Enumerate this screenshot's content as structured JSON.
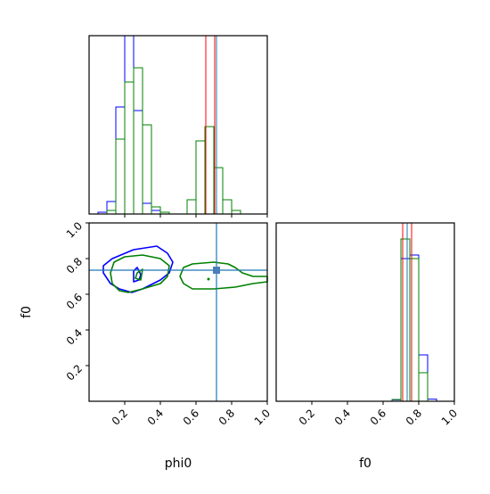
{
  "chart_data": [
    {
      "type": "histogram",
      "panel": "phi0-marginal",
      "xlim": [
        0,
        1
      ],
      "bin_edges": [
        0.0,
        0.05,
        0.1,
        0.15,
        0.2,
        0.25,
        0.3,
        0.35,
        0.4,
        0.45,
        0.5,
        0.55,
        0.6,
        0.65,
        0.7,
        0.75,
        0.8,
        0.85,
        0.9,
        0.95,
        1.0
      ],
      "series": [
        {
          "color": "#0000ff",
          "values": [
            0.0,
            0.01,
            0.07,
            0.6,
            1.15,
            0.58,
            0.06,
            0.02,
            0.0,
            0.0,
            0.0,
            0.0,
            0.0,
            0.0,
            0.0,
            0.0,
            0.0,
            0.0,
            0.0,
            0.0
          ]
        },
        {
          "color": "#008000",
          "values": [
            0.0,
            0.0,
            0.02,
            0.42,
            0.74,
            0.82,
            0.5,
            0.04,
            0.01,
            0.0,
            0.0,
            0.08,
            0.41,
            0.49,
            0.26,
            0.08,
            0.02,
            0.0,
            0.0,
            0.0
          ]
        }
      ],
      "truth_lines": [
        {
          "x": 0.655,
          "color": "#ff0000"
        },
        {
          "x": 0.705,
          "color": "#ff0000"
        },
        {
          "x": 0.715,
          "color": "#1f77b4"
        }
      ]
    },
    {
      "type": "contour",
      "panel": "f0-vs-phi0",
      "xlabel": "phi0",
      "ylabel": "f0",
      "xlim": [
        0,
        1
      ],
      "ylim": [
        0,
        1
      ],
      "xticks": [
        "0.2",
        "0.4",
        "0.6",
        "0.8",
        "1.0"
      ],
      "yticks": [
        "0.2",
        "0.4",
        "0.6",
        "0.8",
        "1.0"
      ],
      "contours": [
        {
          "color": "#0000ff",
          "points": [
            [
              0.08,
              0.76
            ],
            [
              0.13,
              0.8
            ],
            [
              0.25,
              0.85
            ],
            [
              0.38,
              0.87
            ],
            [
              0.44,
              0.83
            ],
            [
              0.47,
              0.78
            ],
            [
              0.45,
              0.72
            ],
            [
              0.4,
              0.68
            ],
            [
              0.3,
              0.63
            ],
            [
              0.24,
              0.61
            ],
            [
              0.17,
              0.63
            ],
            [
              0.12,
              0.66
            ],
            [
              0.08,
              0.72
            ]
          ],
          "closed": true
        },
        {
          "color": "#0000ff",
          "points": [
            [
              0.25,
              0.73
            ],
            [
              0.27,
              0.75
            ],
            [
              0.29,
              0.71
            ],
            [
              0.28,
              0.68
            ],
            [
              0.25,
              0.67
            ]
          ],
          "closed": true
        },
        {
          "color": "#008000",
          "points": [
            [
              0.12,
              0.72
            ],
            [
              0.14,
              0.78
            ],
            [
              0.2,
              0.81
            ],
            [
              0.3,
              0.82
            ],
            [
              0.4,
              0.8
            ],
            [
              0.45,
              0.76
            ],
            [
              0.44,
              0.7
            ],
            [
              0.4,
              0.66
            ],
            [
              0.3,
              0.63
            ],
            [
              0.22,
              0.61
            ],
            [
              0.17,
              0.62
            ],
            [
              0.13,
              0.66
            ]
          ],
          "closed": true
        },
        {
          "color": "#008000",
          "points": [
            [
              0.27,
              0.72
            ],
            [
              0.3,
              0.74
            ],
            [
              0.29,
              0.68
            ],
            [
              0.26,
              0.69
            ]
          ],
          "closed": true
        },
        {
          "color": "#008000",
          "points": [
            [
              0.51,
              0.7
            ],
            [
              0.53,
              0.75
            ],
            [
              0.58,
              0.77
            ],
            [
              0.7,
              0.78
            ],
            [
              0.78,
              0.77
            ],
            [
              0.82,
              0.75
            ],
            [
              0.86,
              0.72
            ],
            [
              0.92,
              0.7
            ],
            [
              1.0,
              0.7
            ],
            [
              1.0,
              0.67
            ],
            [
              0.92,
              0.66
            ],
            [
              0.82,
              0.64
            ],
            [
              0.7,
              0.63
            ],
            [
              0.58,
              0.63
            ],
            [
              0.53,
              0.66
            ]
          ],
          "closed": true
        }
      ],
      "green_dot": {
        "x": 0.67,
        "y": 0.685
      },
      "blue_marker": {
        "x": 0.715,
        "y": 0.735,
        "color": "#4a7ebb"
      },
      "crosshair": {
        "x": 0.715,
        "y": 0.735,
        "color": "#1f77b4"
      }
    },
    {
      "type": "histogram",
      "panel": "f0-marginal",
      "xlabel": "f0",
      "xlim": [
        0,
        1
      ],
      "xticks": [
        "0.2",
        "0.4",
        "0.6",
        "0.8",
        "1.0"
      ],
      "bin_edges": [
        0.0,
        0.05,
        0.1,
        0.15,
        0.2,
        0.25,
        0.3,
        0.35,
        0.4,
        0.45,
        0.5,
        0.55,
        0.6,
        0.65,
        0.7,
        0.75,
        0.8,
        0.85,
        0.9,
        0.95,
        1.0
      ],
      "series": [
        {
          "color": "#0000ff",
          "values": [
            0.0,
            0.0,
            0.0,
            0.0,
            0.0,
            0.0,
            0.0,
            0.0,
            0.0,
            0.0,
            0.0,
            0.0,
            0.0,
            0.008,
            0.8,
            0.82,
            0.26,
            0.012,
            0.0,
            0.0
          ]
        },
        {
          "color": "#008000",
          "values": [
            0.0,
            0.0,
            0.0,
            0.0,
            0.0,
            0.0,
            0.0,
            0.0,
            0.0,
            0.0,
            0.0,
            0.0,
            0.0,
            0.01,
            0.91,
            0.8,
            0.16,
            0.0,
            0.0,
            0.0
          ]
        }
      ],
      "truth_lines": [
        {
          "x": 0.71,
          "color": "#ff0000"
        },
        {
          "x": 0.735,
          "color": "#1f77b4"
        },
        {
          "x": 0.76,
          "color": "#ff0000"
        }
      ]
    }
  ]
}
